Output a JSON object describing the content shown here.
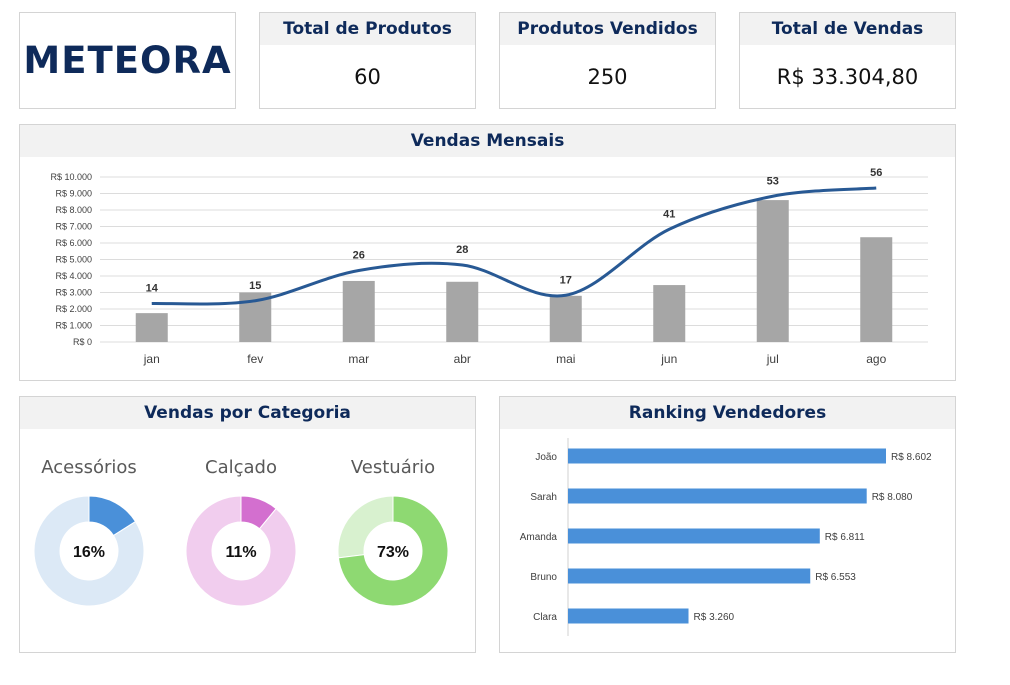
{
  "brand": {
    "name": "METEORA"
  },
  "kpis": [
    {
      "title": "Total de Produtos",
      "value": "60"
    },
    {
      "title": "Produtos Vendidos",
      "value": "250"
    },
    {
      "title": "Total de Vendas",
      "value": "R$ 33.304,80"
    }
  ],
  "chart_data": [
    {
      "type": "bar",
      "title": "Vendas Mensais",
      "categories": [
        "jan",
        "fev",
        "mar",
        "abr",
        "mai",
        "jun",
        "jul",
        "ago"
      ],
      "series": [
        {
          "type": "bar",
          "values": [
            1750,
            3000,
            3700,
            3650,
            2800,
            3450,
            8600,
            6350
          ],
          "color": "#a6a6a6"
        },
        {
          "type": "line",
          "values": [
            14,
            15,
            26,
            28,
            17,
            41,
            53,
            56
          ],
          "labels": [
            "14",
            "15",
            "26",
            "28",
            "17",
            "41",
            "53",
            "56"
          ],
          "color": "#285994"
        }
      ],
      "yticks": [
        "R$ 0",
        "R$ 1.000",
        "R$ 2.000",
        "R$ 3.000",
        "R$ 4.000",
        "R$ 5.000",
        "R$ 6.000",
        "R$ 7.000",
        "R$ 8.000",
        "R$ 9.000",
        "R$ 10.000"
      ],
      "ylim": [
        0,
        10000
      ],
      "line_ylim": [
        0,
        60
      ],
      "grid": true
    },
    {
      "type": "pie",
      "title": "Vendas por Categoria",
      "donuts": [
        {
          "category": "Acessórios",
          "percent": 16,
          "label": "16%",
          "color": "#4a90d9",
          "rest_color": "#dce9f6"
        },
        {
          "category": "Calçado",
          "percent": 11,
          "label": "11%",
          "color": "#d36fcf",
          "rest_color": "#f1cdee"
        },
        {
          "category": "Vestuário",
          "percent": 73,
          "label": "73%",
          "color": "#8ed972",
          "rest_color": "#d8f1cf"
        }
      ]
    },
    {
      "type": "bar",
      "title": "Ranking Vendedores",
      "orientation": "horizontal",
      "categories": [
        "João",
        "Sarah",
        "Amanda",
        "Bruno",
        "Clara"
      ],
      "values": [
        8602,
        8080,
        6811,
        6553,
        3260
      ],
      "labels": [
        "R$ 8.602",
        "R$ 8.080",
        "R$ 6.811",
        "R$ 6.553",
        "R$ 3.260"
      ],
      "color": "#4a90d9"
    }
  ]
}
